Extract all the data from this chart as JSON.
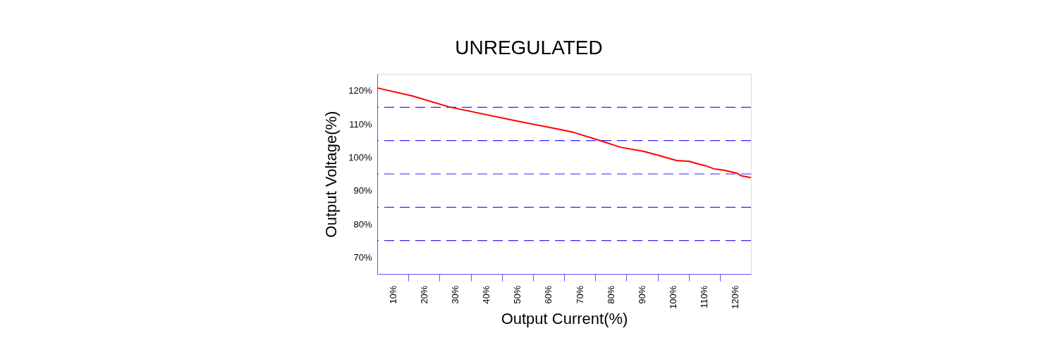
{
  "chart_data": {
    "type": "line",
    "title": "UNREGULATED",
    "xlabel": "Output  Current(%)",
    "ylabel": "Output Voltage(%)",
    "x": [
      5,
      16.3,
      28.1,
      50.3,
      62.7,
      67.9,
      76.3,
      83.1,
      90.4,
      95.6,
      101.2,
      105.1,
      108.0,
      110.3,
      113.2,
      116.4,
      120.5,
      122.0,
      125
    ],
    "series": [
      {
        "color": "#ff0000",
        "values": [
          120.8,
          118.4,
          115.1,
          110.8,
          108.5,
          107.5,
          105.1,
          103.0,
          101.8,
          100.5,
          99.0,
          98.8,
          98.0,
          97.5,
          96.5,
          96.1,
          95.2,
          94.4,
          93.9
        ]
      }
    ],
    "xlim": [
      5,
      125
    ],
    "xticks": [
      {
        "value": 10,
        "label": "10%"
      },
      {
        "value": 15,
        "label": null
      },
      {
        "value": 20,
        "label": "20%"
      },
      {
        "value": 25,
        "label": null
      },
      {
        "value": 30,
        "label": "30%"
      },
      {
        "value": 35,
        "label": null
      },
      {
        "value": 40,
        "label": "40%"
      },
      {
        "value": 45,
        "label": null
      },
      {
        "value": 50,
        "label": "50%"
      },
      {
        "value": 55,
        "label": null
      },
      {
        "value": 60,
        "label": "60%"
      },
      {
        "value": 65,
        "label": null
      },
      {
        "value": 70,
        "label": "70%"
      },
      {
        "value": 75,
        "label": null
      },
      {
        "value": 80,
        "label": "80%"
      },
      {
        "value": 85,
        "label": null
      },
      {
        "value": 90,
        "label": "90%"
      },
      {
        "value": 95,
        "label": null
      },
      {
        "value": 100,
        "label": "100%"
      },
      {
        "value": 105,
        "label": null
      },
      {
        "value": 110,
        "label": "110%"
      },
      {
        "value": 115,
        "label": null
      },
      {
        "value": 120,
        "label": "120%"
      }
    ],
    "ylim": [
      65,
      125
    ],
    "yticks": [
      {
        "value": 70,
        "label": "70%"
      },
      {
        "value": 80,
        "label": "80%"
      },
      {
        "value": 90,
        "label": "90%"
      },
      {
        "value": 100,
        "label": "100%"
      },
      {
        "value": 110,
        "label": "110%"
      },
      {
        "value": 120,
        "label": "120%"
      }
    ],
    "ref_lines": [
      {
        "axis": "y",
        "value": 115,
        "color": "#3c1eff",
        "line_style": "dashed"
      },
      {
        "axis": "y",
        "value": 105,
        "color": "#3c1eff",
        "line_style": "dashed"
      },
      {
        "axis": "y",
        "value": 95,
        "color": "#3c1eff",
        "line_style": "dashed"
      },
      {
        "axis": "y",
        "value": 85,
        "color": "#3c1eff",
        "line_style": "dashed"
      },
      {
        "axis": "y",
        "value": 75,
        "color": "#3c1eff",
        "line_style": "dashed"
      }
    ],
    "grid": false,
    "marker": "none",
    "line_style": "solid"
  }
}
